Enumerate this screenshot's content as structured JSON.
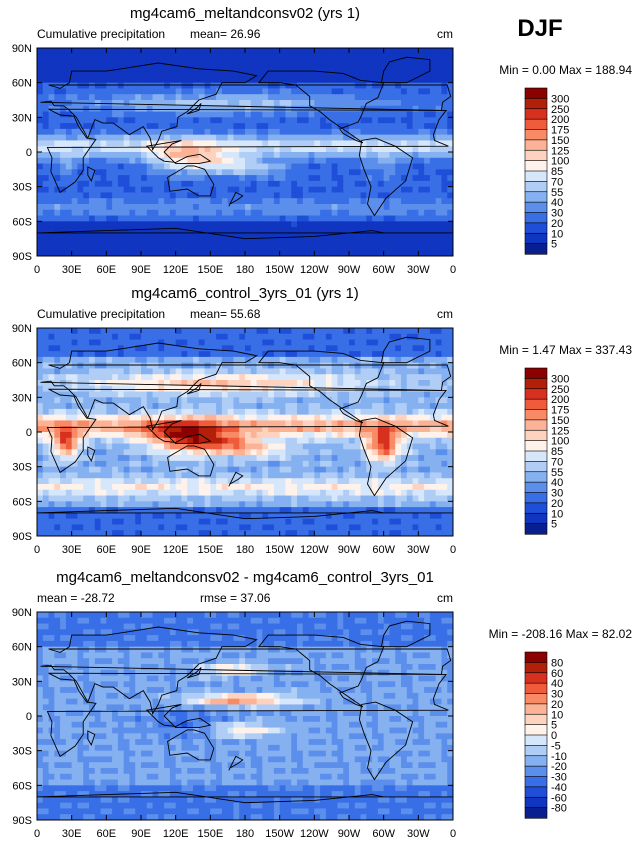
{
  "season": "DJF",
  "chart_data": [
    {
      "type": "heatmap",
      "title": "mg4cam6_meltandconsv02 (yrs 1)",
      "left_label": "Cumulative precipitation",
      "center_label": "mean=  26.96",
      "right_label": "cm",
      "minmax_label": "Min =   0.00 Max = 188.94",
      "mean": 26.96,
      "min": 0.0,
      "max": 188.94,
      "xticks": [
        "0",
        "30E",
        "60E",
        "90E",
        "120E",
        "150E",
        "180",
        "150W",
        "120W",
        "90W",
        "60W",
        "30W",
        "0"
      ],
      "yticks": [
        "90N",
        "60N",
        "30N",
        "0",
        "30S",
        "60S",
        "90S"
      ],
      "colorbar": {
        "labels": [
          "300",
          "250",
          "200",
          "175",
          "150",
          "125",
          "100",
          "85",
          "70",
          "55",
          "40",
          "30",
          "20",
          "10",
          "5"
        ],
        "colors": [
          "#8b0000",
          "#b3200a",
          "#d7301f",
          "#ef5b3b",
          "#f88a65",
          "#fcb294",
          "#fdd3bf",
          "#fff2ea",
          "#d6e6fb",
          "#b0cdf6",
          "#86b1f0",
          "#5c8feb",
          "#386ee6",
          "#1f4fd9",
          "#1035c0",
          "#0a1f8f"
        ]
      },
      "field": "precip_total"
    },
    {
      "type": "heatmap",
      "title": "mg4cam6_control_3yrs_01 (yrs 1)",
      "left_label": "Cumulative precipitation",
      "center_label": "mean=  55.68",
      "right_label": "cm",
      "minmax_label": "Min =   1.47 Max = 337.43",
      "mean": 55.68,
      "min": 1.47,
      "max": 337.43,
      "xticks": [
        "0",
        "30E",
        "60E",
        "90E",
        "120E",
        "150E",
        "180",
        "150W",
        "120W",
        "90W",
        "60W",
        "30W",
        "0"
      ],
      "yticks": [
        "90N",
        "60N",
        "30N",
        "0",
        "30S",
        "60S",
        "90S"
      ],
      "colorbar": {
        "labels": [
          "300",
          "250",
          "200",
          "175",
          "150",
          "125",
          "100",
          "85",
          "70",
          "55",
          "40",
          "30",
          "20",
          "10",
          "5"
        ],
        "colors": [
          "#8b0000",
          "#b3200a",
          "#d7301f",
          "#ef5b3b",
          "#f88a65",
          "#fcb294",
          "#fdd3bf",
          "#fff2ea",
          "#d6e6fb",
          "#b0cdf6",
          "#86b1f0",
          "#5c8feb",
          "#386ee6",
          "#1f4fd9",
          "#1035c0",
          "#0a1f8f"
        ]
      },
      "field": "precip_control"
    },
    {
      "type": "heatmap",
      "title": "mg4cam6_meltandconsv02 - mg4cam6_control_3yrs_01",
      "left_label": "mean = -28.72",
      "center_label": "rmse =  37.06",
      "right_label": "cm",
      "minmax_label": "Min = -208.16 Max =  82.02",
      "mean": -28.72,
      "rmse": 37.06,
      "min": -208.16,
      "max": 82.02,
      "xticks": [
        "0",
        "30E",
        "60E",
        "90E",
        "120E",
        "150E",
        "180",
        "150W",
        "120W",
        "90W",
        "60W",
        "30W",
        "0"
      ],
      "yticks": [
        "90N",
        "60N",
        "30N",
        "0",
        "30S",
        "60S",
        "90S"
      ],
      "colorbar": {
        "labels": [
          "80",
          "60",
          "40",
          "30",
          "20",
          "10",
          "5",
          "0",
          "-5",
          "-10",
          "-20",
          "-30",
          "-40",
          "-60",
          "-80"
        ],
        "colors": [
          "#8b0000",
          "#b3200a",
          "#d7301f",
          "#ef5b3b",
          "#f88a65",
          "#fcb294",
          "#fdd3bf",
          "#fff2ea",
          "#d6e6fb",
          "#b0cdf6",
          "#86b1f0",
          "#5c8feb",
          "#386ee6",
          "#1f4fd9",
          "#1035c0",
          "#0a1f8f"
        ]
      },
      "field": "difference"
    }
  ]
}
